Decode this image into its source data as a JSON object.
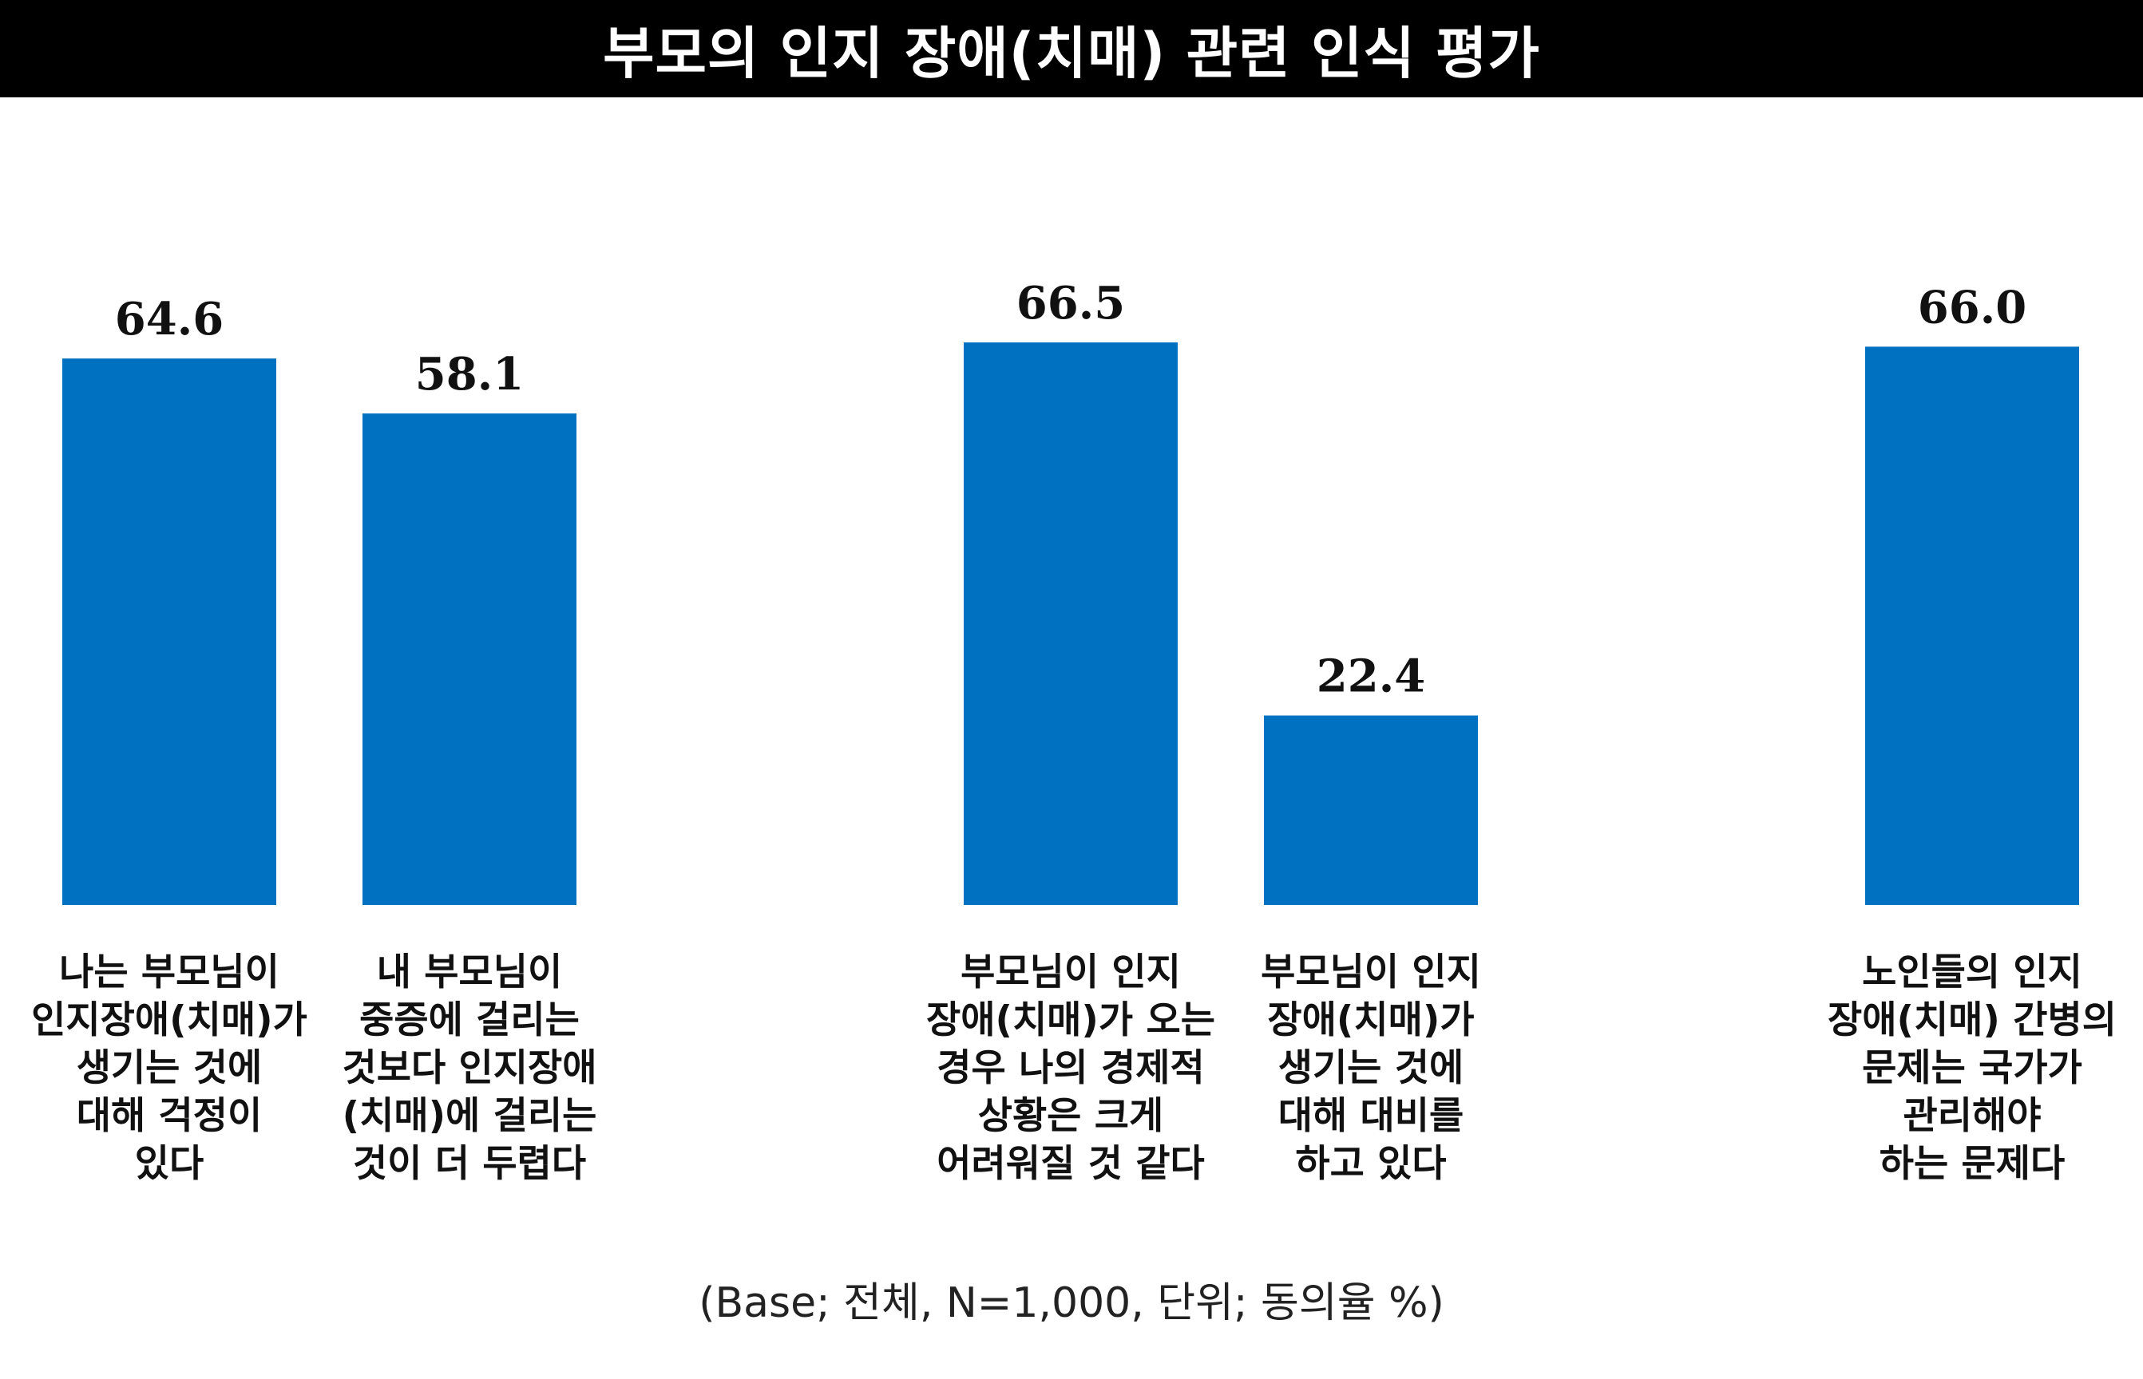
{
  "header": {
    "title": "부모의 인지 장애(치매) 관련 인식 평가"
  },
  "footnote": "(Base; 전체, N=1,000, 단위; 동의율 %)",
  "chart_data": {
    "type": "bar",
    "title": "부모의 인지 장애(치매) 관련 인식 평가",
    "bar_color": "#0070c0",
    "ylim": [
      0,
      70
    ],
    "grid": false,
    "categories": [
      [
        "나는 부모님이",
        "인지장애(치매)가",
        "생기는 것에",
        "대해 걱정이",
        "있다"
      ],
      [
        "내 부모님이",
        "중증에 걸리는",
        "것보다 인지장애",
        "(치매)에 걸리는",
        "것이 더 두렵다"
      ],
      [
        "부모님이 인지",
        "장애(치매)가 오는",
        "경우 나의 경제적",
        "상황은 크게",
        "어려워질 것 같다"
      ],
      [
        "부모님이 인지",
        "장애(치매)가",
        "생기는 것에",
        "대해 대비를",
        "하고 있다"
      ],
      [
        "노인들의 인지",
        "장애(치매) 간병의",
        "문제는 국가가",
        "관리해야",
        "하는 문제다"
      ]
    ],
    "values": [
      64.6,
      58.1,
      66.5,
      22.4,
      66.0
    ],
    "value_labels": [
      "64.6",
      "58.1",
      "66.5",
      "22.4",
      "66.0"
    ]
  }
}
